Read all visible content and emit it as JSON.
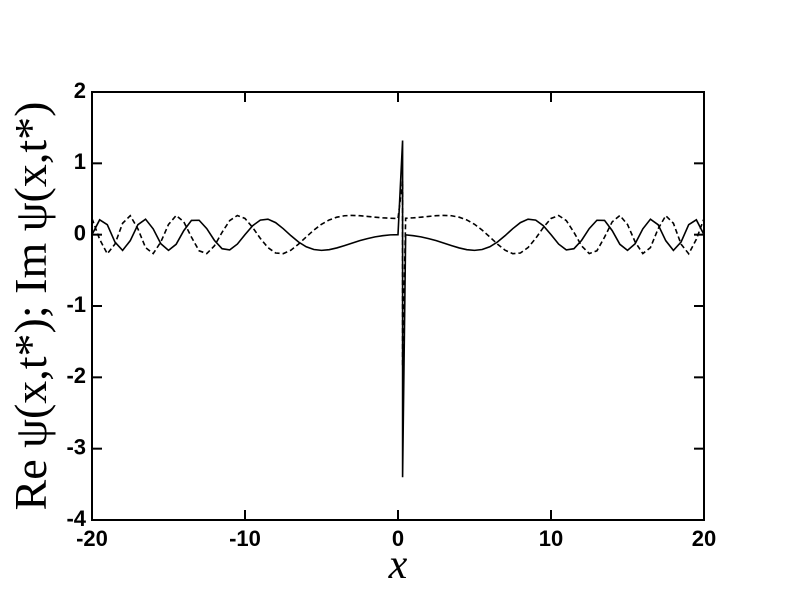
{
  "chart_data": {
    "type": "line",
    "xlabel": "x",
    "ylabel": "Re ψ(x,t*);  Im ψ(x,t*)",
    "x": [
      -20,
      -19.5,
      -19,
      -18.5,
      -18,
      -17.5,
      -17,
      -16.5,
      -16,
      -15.5,
      -15,
      -14.5,
      -14,
      -13.5,
      -13,
      -12.5,
      -12,
      -11.5,
      -11,
      -10.5,
      -10,
      -9.5,
      -9,
      -8.5,
      -8,
      -7.5,
      -7,
      -6.5,
      -6,
      -5.5,
      -5,
      -4.5,
      -4,
      -3.5,
      -3,
      -2.5,
      -2,
      -1.5,
      -1,
      -0.5,
      0,
      0.3,
      0.3,
      0.5,
      1,
      1.5,
      2,
      2.5,
      3,
      3.5,
      4,
      4.5,
      5,
      5.5,
      6,
      6.5,
      7,
      7.5,
      8,
      8.5,
      9,
      9.5,
      10,
      10.5,
      11,
      11.5,
      12,
      12.5,
      13,
      13.5,
      14,
      14.5,
      15,
      15.5,
      16,
      16.5,
      17,
      17.5,
      18,
      18.5,
      19,
      19.5,
      20
    ],
    "series": [
      {
        "name": "Re",
        "color": "#000000",
        "style": "solid",
        "values": [
          0,
          0.208,
          0.14,
          -0.103,
          -0.22,
          -0.084,
          0.14,
          0.217,
          0.081,
          -0.127,
          -0.22,
          -0.135,
          0.057,
          0.2,
          0.202,
          0.085,
          -0.08,
          -0.197,
          -0.213,
          -0.132,
          0,
          0.126,
          0.204,
          0.217,
          0.169,
          0.084,
          -0.014,
          -0.103,
          -0.17,
          -0.208,
          -0.22,
          -0.21,
          -0.186,
          -0.153,
          -0.118,
          -0.084,
          -0.055,
          -0.031,
          -0.014,
          -0.003,
          0,
          1.32,
          -3.4,
          -0.003,
          -0.014,
          -0.031,
          -0.055,
          -0.084,
          -0.118,
          -0.153,
          -0.186,
          -0.21,
          -0.22,
          -0.208,
          -0.17,
          -0.103,
          -0.014,
          0.084,
          0.169,
          0.217,
          0.204,
          0.126,
          0,
          -0.132,
          -0.213,
          -0.197,
          -0.08,
          0.085,
          0.202,
          0.2,
          0.057,
          -0.135,
          -0.22,
          -0.127,
          0.081,
          0.217,
          0.14,
          -0.084,
          -0.22,
          -0.103,
          0.14,
          0.208,
          0
        ]
      },
      {
        "name": "Im",
        "color": "#000000",
        "style": "dashed",
        "values": [
          0.227,
          -0.065,
          -0.268,
          -0.132,
          0.16,
          0.266,
          0.082,
          -0.181,
          -0.265,
          -0.102,
          0.143,
          0.269,
          0.18,
          -0.035,
          -0.226,
          -0.265,
          -0.157,
          0.032,
          0.198,
          0.269,
          0.227,
          0.101,
          -0.052,
          -0.181,
          -0.257,
          -0.266,
          -0.218,
          -0.132,
          -0.032,
          0.064,
          0.146,
          0.206,
          0.245,
          0.265,
          0.27,
          0.266,
          0.256,
          0.245,
          0.236,
          0.23,
          0.227,
          0.75,
          -1.85,
          0.23,
          0.236,
          0.245,
          0.256,
          0.266,
          0.27,
          0.265,
          0.245,
          0.206,
          0.146,
          0.064,
          -0.032,
          -0.132,
          -0.218,
          -0.266,
          -0.257,
          -0.181,
          -0.052,
          0.101,
          0.227,
          0.269,
          0.198,
          0.032,
          -0.157,
          -0.265,
          -0.226,
          -0.035,
          0.18,
          0.269,
          0.143,
          -0.102,
          -0.265,
          -0.181,
          0.082,
          0.266,
          0.16,
          -0.132,
          -0.268,
          -0.065,
          0.227
        ]
      }
    ],
    "xlim": [
      -20,
      20
    ],
    "xticks": [
      -20,
      -10,
      0,
      10,
      20
    ],
    "ylim": [
      -4,
      2
    ],
    "yticks": [
      -4,
      -3,
      -2,
      -1,
      0,
      1,
      2
    ],
    "grid": false
  }
}
